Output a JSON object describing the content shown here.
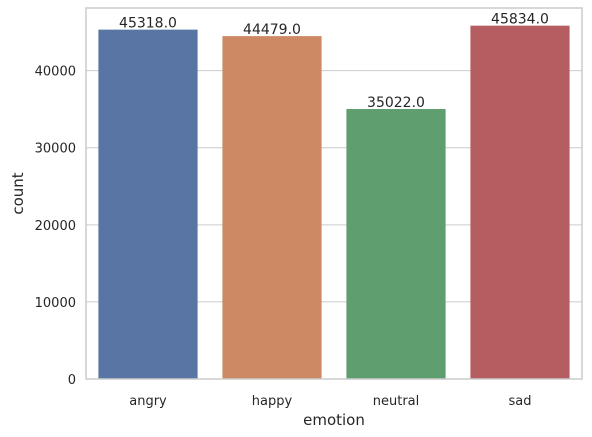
{
  "chart_data": {
    "type": "bar",
    "title": "",
    "xlabel": "emotion",
    "ylabel": "count",
    "categories": [
      "angry",
      "happy",
      "neutral",
      "sad"
    ],
    "values": [
      45318.0,
      44479.0,
      35022.0,
      45834.0
    ],
    "bar_labels": [
      "45318.0",
      "44479.0",
      "35022.0",
      "45834.0"
    ],
    "colors": [
      "#5975a4",
      "#cc8963",
      "#5f9e6e",
      "#b55d60"
    ],
    "ylim": [
      0,
      48125
    ],
    "yticks": [
      0,
      10000,
      20000,
      30000,
      40000
    ],
    "ytick_labels": [
      "0",
      "10000",
      "20000",
      "30000",
      "40000"
    ],
    "grid": "horizontal",
    "grid_color": "#cccccc",
    "axis_color": "#cccccc"
  }
}
